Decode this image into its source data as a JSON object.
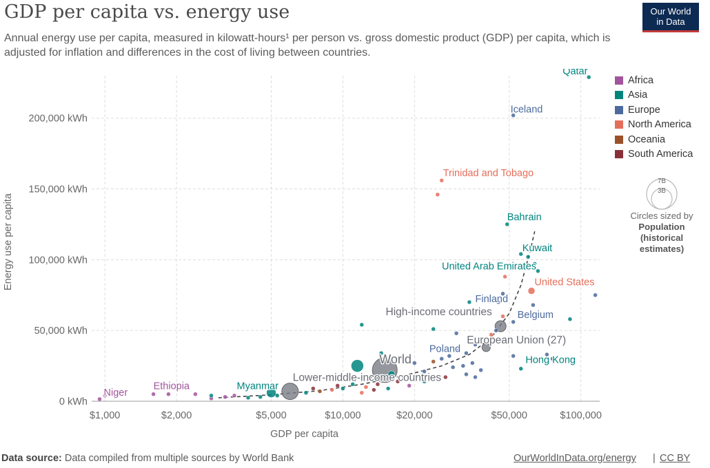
{
  "header": {
    "title": "GDP per capita vs. energy use",
    "subtitle": "Annual energy use per capita, measured in kilowatt-hours¹ per person vs. gross domestic product (GDP) per capita, which is adjusted for inflation and differences in the cost of living between countries.",
    "logo_line1": "Our World",
    "logo_line2": "in Data"
  },
  "legend": {
    "items": [
      {
        "label": "Africa",
        "color": "#a2559c"
      },
      {
        "label": "Asia",
        "color": "#00847e"
      },
      {
        "label": "Europe",
        "color": "#4c6a9c"
      },
      {
        "label": "North America",
        "color": "#e56e5a"
      },
      {
        "label": "Oceania",
        "color": "#9a5129"
      },
      {
        "label": "South America",
        "color": "#883039"
      }
    ],
    "size_big": "7B",
    "size_small": "3B",
    "size_caption": "Circles sized by",
    "size_title": "Population (historical estimates)"
  },
  "footer": {
    "source_label": "Data source:",
    "source_text": "Data compiled from multiple sources by World Bank",
    "link": "OurWorldInData.org/energy",
    "separator": "|",
    "license": "CC BY"
  },
  "chart_data": {
    "type": "scatter",
    "xlabel": "GDP per capita",
    "ylabel": "Energy use per capita",
    "xscale": "log",
    "xlim": [
      880,
      120000
    ],
    "ylim": [
      0,
      230000
    ],
    "x_ticks": [
      {
        "value": 1000,
        "label": "$1,000"
      },
      {
        "value": 2000,
        "label": "$2,000"
      },
      {
        "value": 5000,
        "label": "$5,000"
      },
      {
        "value": 10000,
        "label": "$10,000"
      },
      {
        "value": 20000,
        "label": "$20,000"
      },
      {
        "value": 50000,
        "label": "$50,000"
      },
      {
        "value": 100000,
        "label": "$100,000"
      }
    ],
    "y_ticks": [
      {
        "value": 0,
        "label": "0 kWh"
      },
      {
        "value": 50000,
        "label": "50,000 kWh"
      },
      {
        "value": 100000,
        "label": "100,000 kWh"
      },
      {
        "value": 150000,
        "label": "150,000 kWh"
      },
      {
        "value": 200000,
        "label": "200,000 kWh"
      }
    ],
    "grid": true,
    "legend_position": "right",
    "labeled_points": [
      {
        "label": "Qatar",
        "x": 108000,
        "y": 229000,
        "region": "Asia"
      },
      {
        "label": "Iceland",
        "x": 52000,
        "y": 202000,
        "region": "Europe"
      },
      {
        "label": "Trinidad and Tobago",
        "x": 26000,
        "y": 156000,
        "region": "North America"
      },
      {
        "label": "Bahrain",
        "x": 49000,
        "y": 125000,
        "region": "Asia"
      },
      {
        "label": "Kuwait",
        "x": 56000,
        "y": 104000,
        "region": "Asia"
      },
      {
        "label": "United Arab Emirates",
        "x": 62000,
        "y": 96000,
        "region": "Asia"
      },
      {
        "label": "United States",
        "x": 63000,
        "y": 78000,
        "region": "North America"
      },
      {
        "label": "Finland",
        "x": 47000,
        "y": 70000,
        "region": "Europe"
      },
      {
        "label": "High-income countries",
        "x": 47000,
        "y": 53000,
        "region": "Aggregate"
      },
      {
        "label": "Belgium",
        "x": 52000,
        "y": 53000,
        "region": "Europe"
      },
      {
        "label": "European Union (27)",
        "x": 40000,
        "y": 38000,
        "region": "Aggregate"
      },
      {
        "label": "Poland",
        "x": 34000,
        "y": 30000,
        "region": "Europe"
      },
      {
        "label": "Hong Kong",
        "x": 57000,
        "y": 23000,
        "region": "Asia"
      },
      {
        "label": "World",
        "x": 15000,
        "y": 22000,
        "region": "Aggregate"
      },
      {
        "label": "Lower-middle-income countries",
        "x": 6000,
        "y": 7000,
        "region": "Aggregate"
      },
      {
        "label": "Myanmar",
        "x": 5000,
        "y": 6000,
        "region": "Asia"
      },
      {
        "label": "Ethiopia",
        "x": 1600,
        "y": 5000,
        "region": "Africa"
      },
      {
        "label": "Niger",
        "x": 950,
        "y": 1500,
        "region": "Africa"
      }
    ],
    "points": [
      {
        "x": 108000,
        "y": 229000,
        "r": 3,
        "region": "Asia"
      },
      {
        "x": 52000,
        "y": 202000,
        "r": 3,
        "region": "Europe"
      },
      {
        "x": 26000,
        "y": 156000,
        "r": 3,
        "region": "North America"
      },
      {
        "x": 25000,
        "y": 146000,
        "r": 3,
        "region": "North America"
      },
      {
        "x": 49000,
        "y": 125000,
        "r": 3,
        "region": "Asia"
      },
      {
        "x": 56000,
        "y": 104000,
        "r": 3,
        "region": "Asia"
      },
      {
        "x": 60000,
        "y": 102000,
        "r": 3,
        "region": "Asia"
      },
      {
        "x": 64000,
        "y": 97000,
        "r": 3,
        "region": "Asia"
      },
      {
        "x": 66000,
        "y": 92000,
        "r": 3,
        "region": "Asia"
      },
      {
        "x": 48000,
        "y": 88000,
        "r": 3,
        "region": "North America"
      },
      {
        "x": 62000,
        "y": 78000,
        "r": 5,
        "region": "North America"
      },
      {
        "x": 47000,
        "y": 76000,
        "r": 3,
        "region": "Europe"
      },
      {
        "x": 45000,
        "y": 70000,
        "r": 3,
        "region": "Europe"
      },
      {
        "x": 34000,
        "y": 70000,
        "r": 3,
        "region": "Asia"
      },
      {
        "x": 115000,
        "y": 75000,
        "r": 3,
        "region": "Europe"
      },
      {
        "x": 63000,
        "y": 68000,
        "r": 3,
        "region": "Europe"
      },
      {
        "x": 90000,
        "y": 58000,
        "r": 3,
        "region": "Asia"
      },
      {
        "x": 12000,
        "y": 54000,
        "r": 3,
        "region": "Asia"
      },
      {
        "x": 47000,
        "y": 60000,
        "r": 3,
        "region": "North America"
      },
      {
        "x": 52000,
        "y": 56000,
        "r": 3,
        "region": "Europe"
      },
      {
        "x": 46000,
        "y": 53000,
        "r": 8,
        "region": "Aggregate"
      },
      {
        "x": 24000,
        "y": 51000,
        "r": 3,
        "region": "Asia"
      },
      {
        "x": 30000,
        "y": 48000,
        "r": 3,
        "region": "Europe"
      },
      {
        "x": 44000,
        "y": 50000,
        "r": 3,
        "region": "Europe"
      },
      {
        "x": 38000,
        "y": 44000,
        "r": 3,
        "region": "Europe"
      },
      {
        "x": 42000,
        "y": 47000,
        "r": 3,
        "region": "North America"
      },
      {
        "x": 40000,
        "y": 38000,
        "r": 6,
        "region": "Aggregate"
      },
      {
        "x": 36000,
        "y": 40000,
        "r": 3,
        "region": "Europe"
      },
      {
        "x": 33000,
        "y": 34000,
        "r": 3,
        "region": "Europe"
      },
      {
        "x": 30000,
        "y": 36000,
        "r": 3,
        "region": "Europe"
      },
      {
        "x": 28000,
        "y": 32000,
        "r": 3,
        "region": "Europe"
      },
      {
        "x": 26000,
        "y": 30000,
        "r": 3,
        "region": "Europe"
      },
      {
        "x": 24000,
        "y": 28000,
        "r": 3,
        "region": "Oceania"
      },
      {
        "x": 35000,
        "y": 27000,
        "r": 3,
        "region": "Europe"
      },
      {
        "x": 32000,
        "y": 25000,
        "r": 3,
        "region": "Europe"
      },
      {
        "x": 29000,
        "y": 24000,
        "r": 3,
        "region": "Europe"
      },
      {
        "x": 38000,
        "y": 22000,
        "r": 3,
        "region": "Europe"
      },
      {
        "x": 33000,
        "y": 19000,
        "r": 3,
        "region": "Europe"
      },
      {
        "x": 27000,
        "y": 17000,
        "r": 3,
        "region": "South America"
      },
      {
        "x": 22000,
        "y": 21000,
        "r": 3,
        "region": "Europe"
      },
      {
        "x": 20000,
        "y": 18000,
        "r": 3,
        "region": "North America"
      },
      {
        "x": 18000,
        "y": 16000,
        "r": 3,
        "region": "Europe"
      },
      {
        "x": 52000,
        "y": 32000,
        "r": 3,
        "region": "Europe"
      },
      {
        "x": 72000,
        "y": 33000,
        "r": 3,
        "region": "Europe"
      },
      {
        "x": 76000,
        "y": 30000,
        "r": 3,
        "region": "Europe"
      },
      {
        "x": 56000,
        "y": 23000,
        "r": 3,
        "region": "Asia"
      },
      {
        "x": 20000,
        "y": 27000,
        "r": 3,
        "region": "Europe"
      },
      {
        "x": 14500,
        "y": 34000,
        "r": 3,
        "region": "Asia"
      },
      {
        "x": 11500,
        "y": 25000,
        "r": 9,
        "region": "Asia"
      },
      {
        "x": 15000,
        "y": 22000,
        "r": 18,
        "region": "Aggregate"
      },
      {
        "x": 16000,
        "y": 19000,
        "r": 5,
        "region": "Asia"
      },
      {
        "x": 13000,
        "y": 17000,
        "r": 3,
        "region": "Asia"
      },
      {
        "x": 17000,
        "y": 14000,
        "r": 3,
        "region": "South America"
      },
      {
        "x": 14000,
        "y": 12000,
        "r": 3,
        "region": "South America"
      },
      {
        "x": 12500,
        "y": 10000,
        "r": 3,
        "region": "North America"
      },
      {
        "x": 11000,
        "y": 12000,
        "r": 3,
        "region": "Asia"
      },
      {
        "x": 10000,
        "y": 9000,
        "r": 3,
        "region": "Asia"
      },
      {
        "x": 9500,
        "y": 11000,
        "r": 3,
        "region": "South America"
      },
      {
        "x": 9000,
        "y": 8000,
        "r": 3,
        "region": "North America"
      },
      {
        "x": 13500,
        "y": 8000,
        "r": 3,
        "region": "South America"
      },
      {
        "x": 12000,
        "y": 6000,
        "r": 3,
        "region": "North America"
      },
      {
        "x": 15500,
        "y": 9000,
        "r": 3,
        "region": "Asia"
      },
      {
        "x": 8000,
        "y": 7000,
        "r": 3,
        "region": "Oceania"
      },
      {
        "x": 7500,
        "y": 9000,
        "r": 3,
        "region": "South America"
      },
      {
        "x": 7000,
        "y": 6000,
        "r": 3,
        "region": "Asia"
      },
      {
        "x": 6000,
        "y": 7000,
        "r": 12,
        "region": "Aggregate"
      },
      {
        "x": 5000,
        "y": 6000,
        "r": 7,
        "region": "Asia"
      },
      {
        "x": 5300,
        "y": 4000,
        "r": 3,
        "region": "Asia"
      },
      {
        "x": 4500,
        "y": 3000,
        "r": 3,
        "region": "Asia"
      },
      {
        "x": 4000,
        "y": 2500,
        "r": 3,
        "region": "Asia"
      },
      {
        "x": 3500,
        "y": 4000,
        "r": 3,
        "region": "Africa"
      },
      {
        "x": 3200,
        "y": 3000,
        "r": 3,
        "region": "Africa"
      },
      {
        "x": 2800,
        "y": 2000,
        "r": 3,
        "region": "Africa"
      },
      {
        "x": 2800,
        "y": 4000,
        "r": 3,
        "region": "Asia"
      },
      {
        "x": 2400,
        "y": 5000,
        "r": 3,
        "region": "Africa"
      },
      {
        "x": 1850,
        "y": 5000,
        "r": 3,
        "region": "Africa"
      },
      {
        "x": 1600,
        "y": 5000,
        "r": 3,
        "region": "Africa"
      },
      {
        "x": 1000,
        "y": 4000,
        "r": 3,
        "region": "Africa"
      },
      {
        "x": 950,
        "y": 1500,
        "r": 3,
        "region": "Africa"
      },
      {
        "x": 19000,
        "y": 11000,
        "r": 3,
        "region": "Africa"
      },
      {
        "x": 22000,
        "y": 14000,
        "r": 3,
        "region": "Asia"
      },
      {
        "x": 36000,
        "y": 17000,
        "r": 3,
        "region": "Europe"
      }
    ],
    "trend_line": [
      {
        "x": 3000,
        "y": 2500
      },
      {
        "x": 5000,
        "y": 4500
      },
      {
        "x": 8000,
        "y": 7500
      },
      {
        "x": 12000,
        "y": 12000
      },
      {
        "x": 18000,
        "y": 18000
      },
      {
        "x": 26000,
        "y": 25000
      },
      {
        "x": 34000,
        "y": 33000
      },
      {
        "x": 42000,
        "y": 45000
      },
      {
        "x": 50000,
        "y": 62000
      },
      {
        "x": 56000,
        "y": 82000
      },
      {
        "x": 61000,
        "y": 105000
      },
      {
        "x": 64000,
        "y": 120000
      }
    ]
  }
}
